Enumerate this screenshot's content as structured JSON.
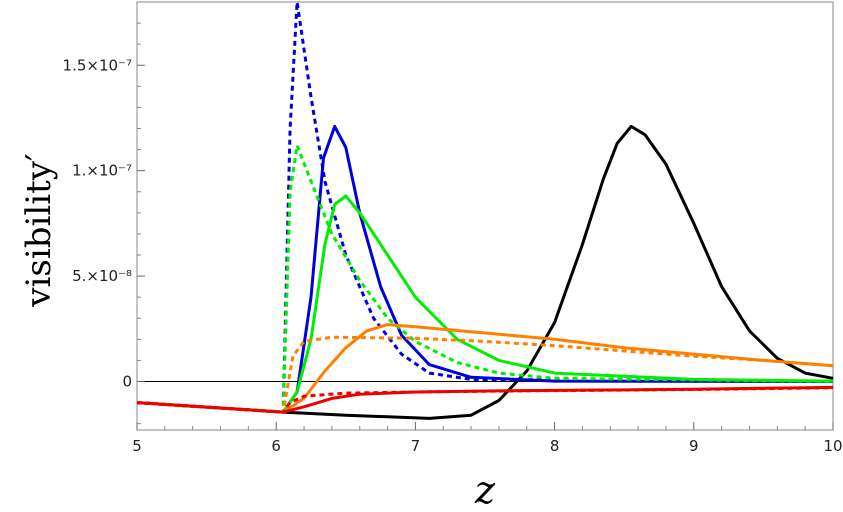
{
  "chart_data": {
    "type": "line",
    "xlabel": "z",
    "ylabel": "visibility′",
    "xlim": [
      5,
      10
    ],
    "ylim": [
      -2.3e-08,
      1.8e-07
    ],
    "x_ticks": [
      {
        "value": 5,
        "label": "5"
      },
      {
        "value": 6,
        "label": "6"
      },
      {
        "value": 7,
        "label": "7"
      },
      {
        "value": 8,
        "label": "8"
      },
      {
        "value": 9,
        "label": "9"
      },
      {
        "value": 10,
        "label": "10"
      }
    ],
    "y_ticks": [
      {
        "value": 0,
        "label": "0"
      },
      {
        "value": 5e-08,
        "label": "5.×10⁻⁸"
      },
      {
        "value": 1e-07,
        "label": "1.×10⁻⁷"
      },
      {
        "value": 1.5e-07,
        "label": "1.5×10⁻⁷"
      }
    ],
    "grid": false,
    "series": [
      {
        "color": "#000000",
        "style": "solid",
        "points": [
          [
            5,
            -1e-08
          ],
          [
            6.05,
            -1.45e-08
          ],
          [
            6.5,
            -1.6e-08
          ],
          [
            7.1,
            -1.75e-08
          ],
          [
            7.4,
            -1.6e-08
          ],
          [
            7.6,
            -9e-09
          ],
          [
            7.8,
            5e-09
          ],
          [
            8.0,
            2.8e-08
          ],
          [
            8.2,
            6.5e-08
          ],
          [
            8.35,
            9.6e-08
          ],
          [
            8.45,
            1.13e-07
          ],
          [
            8.55,
            1.21e-07
          ],
          [
            8.65,
            1.17e-07
          ],
          [
            8.8,
            1.03e-07
          ],
          [
            9.0,
            7.5e-08
          ],
          [
            9.2,
            4.5e-08
          ],
          [
            9.4,
            2.4e-08
          ],
          [
            9.6,
            1.1e-08
          ],
          [
            9.8,
            4e-09
          ],
          [
            10,
            1.5e-09
          ]
        ]
      },
      {
        "color": "#0000dd",
        "style": "solid",
        "points": [
          [
            5,
            -1e-08
          ],
          [
            6.05,
            -1.45e-08
          ],
          [
            6.15,
            -5e-09
          ],
          [
            6.25,
            4e-08
          ],
          [
            6.34,
            1.06e-07
          ],
          [
            6.42,
            1.21e-07
          ],
          [
            6.5,
            1.11e-07
          ],
          [
            6.6,
            8e-08
          ],
          [
            6.75,
            4.5e-08
          ],
          [
            6.9,
            2.2e-08
          ],
          [
            7.1,
            8e-09
          ],
          [
            7.4,
            2e-09
          ],
          [
            8.0,
            2e-10
          ],
          [
            10,
            0
          ]
        ]
      },
      {
        "color": "#0000dd",
        "style": "dashed",
        "points": [
          [
            5,
            -1e-08
          ],
          [
            6.05,
            -1.45e-08
          ],
          [
            6.1,
            1.2e-07
          ],
          [
            6.15,
            1.8e-07
          ],
          [
            6.25,
            1.35e-07
          ],
          [
            6.35,
            9.5e-08
          ],
          [
            6.5,
            6e-08
          ],
          [
            6.7,
            3e-08
          ],
          [
            6.9,
            1.3e-08
          ],
          [
            7.1,
            4e-09
          ],
          [
            7.4,
            1e-09
          ],
          [
            10,
            0
          ]
        ]
      },
      {
        "color": "#00ee00",
        "style": "solid",
        "points": [
          [
            5,
            -1e-08
          ],
          [
            6.05,
            -1.45e-08
          ],
          [
            6.15,
            -5e-09
          ],
          [
            6.25,
            2e-08
          ],
          [
            6.35,
            6.5e-08
          ],
          [
            6.42,
            8.4e-08
          ],
          [
            6.5,
            8.8e-08
          ],
          [
            6.6,
            8e-08
          ],
          [
            6.8,
            6e-08
          ],
          [
            7.0,
            4e-08
          ],
          [
            7.3,
            2e-08
          ],
          [
            7.6,
            1e-08
          ],
          [
            8.0,
            4e-09
          ],
          [
            9.0,
            1e-09
          ],
          [
            10,
            2e-10
          ]
        ]
      },
      {
        "color": "#00ee00",
        "style": "dashed",
        "points": [
          [
            5,
            -1e-08
          ],
          [
            6.05,
            -1.45e-08
          ],
          [
            6.1,
            9e-08
          ],
          [
            6.15,
            1.12e-07
          ],
          [
            6.25,
            9.5e-08
          ],
          [
            6.4,
            7e-08
          ],
          [
            6.6,
            4.8e-08
          ],
          [
            6.8,
            3e-08
          ],
          [
            7.0,
            1.9e-08
          ],
          [
            7.3,
            9e-09
          ],
          [
            7.6,
            4e-09
          ],
          [
            8.0,
            1.5e-09
          ],
          [
            10,
            0
          ]
        ]
      },
      {
        "color": "#ff8000",
        "style": "solid",
        "points": [
          [
            5,
            -1e-08
          ],
          [
            6.05,
            -1.45e-08
          ],
          [
            6.2,
            -8e-09
          ],
          [
            6.35,
            5e-09
          ],
          [
            6.5,
            1.6e-08
          ],
          [
            6.65,
            2.4e-08
          ],
          [
            6.8,
            2.7e-08
          ],
          [
            7.0,
            2.6e-08
          ],
          [
            7.5,
            2.3e-08
          ],
          [
            8.0,
            2e-08
          ],
          [
            8.5,
            1.6e-08
          ],
          [
            9.0,
            1.3e-08
          ],
          [
            9.5,
            1e-08
          ],
          [
            10,
            7.5e-09
          ]
        ]
      },
      {
        "color": "#ff8000",
        "style": "dashed",
        "points": [
          [
            5,
            -1e-08
          ],
          [
            6.05,
            -1.45e-08
          ],
          [
            6.12,
            1.2e-08
          ],
          [
            6.2,
            1.9e-08
          ],
          [
            6.4,
            2.1e-08
          ],
          [
            7.0,
            2.05e-08
          ],
          [
            7.5,
            1.9e-08
          ],
          [
            8.0,
            1.7e-08
          ],
          [
            8.5,
            1.45e-08
          ],
          [
            9.0,
            1.2e-08
          ],
          [
            9.5,
            1e-08
          ],
          [
            10,
            7.5e-09
          ]
        ]
      },
      {
        "color": "#ee0000",
        "style": "solid",
        "points": [
          [
            5,
            -1e-08
          ],
          [
            6.05,
            -1.45e-08
          ],
          [
            6.2,
            -1.2e-08
          ],
          [
            6.4,
            -8e-09
          ],
          [
            6.6,
            -6e-09
          ],
          [
            7.0,
            -5e-09
          ],
          [
            7.5,
            -4.5e-09
          ],
          [
            8.0,
            -4.2e-09
          ],
          [
            8.5,
            -4e-09
          ],
          [
            9.0,
            -3.7e-09
          ],
          [
            9.5,
            -3.2e-09
          ],
          [
            10,
            -2.8e-09
          ]
        ]
      },
      {
        "color": "#ee0000",
        "style": "dashed",
        "points": [
          [
            5,
            -1e-08
          ],
          [
            6.05,
            -1.45e-08
          ],
          [
            6.1,
            -1e-08
          ],
          [
            6.2,
            -7e-09
          ],
          [
            6.5,
            -5.5e-09
          ],
          [
            7.0,
            -5e-09
          ],
          [
            7.5,
            -4.6e-09
          ],
          [
            8.0,
            -4.3e-09
          ],
          [
            9.0,
            -3.8e-09
          ],
          [
            10,
            -3e-09
          ]
        ]
      }
    ]
  }
}
